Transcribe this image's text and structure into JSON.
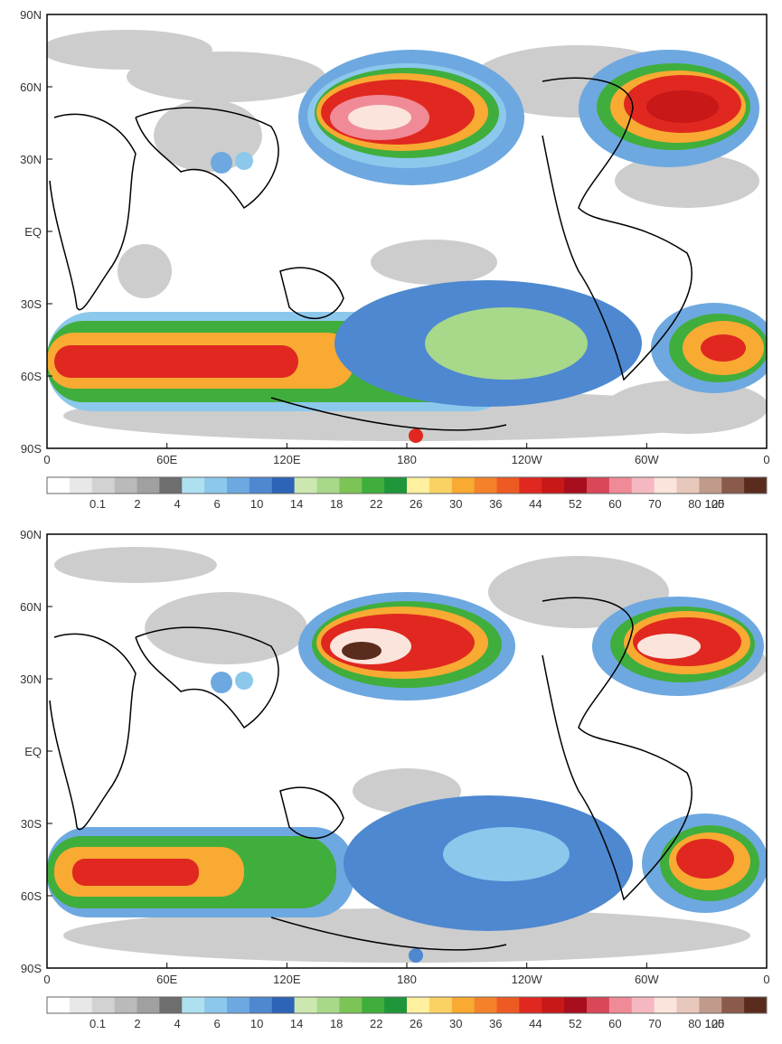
{
  "axes": {
    "lat_labels": [
      "90N",
      "60N",
      "30N",
      "EQ",
      "30S",
      "60S",
      "90S"
    ],
    "lon_labels": [
      "0",
      "60E",
      "120E",
      "180",
      "120W",
      "60W",
      "0"
    ]
  },
  "colorbar": {
    "labels": [
      "0.1",
      "2",
      "4",
      "6",
      "10",
      "14",
      "18",
      "22",
      "26",
      "30",
      "36",
      "44",
      "52",
      "60",
      "70",
      "80",
      "100",
      "125"
    ],
    "colors": [
      "#ffffff",
      "#e8e8e8",
      "#d2d2d2",
      "#bababa",
      "#a0a0a0",
      "#6e6e6e",
      "#aee0f0",
      "#8cc8ec",
      "#6ea8e0",
      "#4e88d0",
      "#2e64b8",
      "#cce8b0",
      "#a8d88a",
      "#7cc456",
      "#40ae3c",
      "#20963a",
      "#fff0a0",
      "#fad264",
      "#f8aa32",
      "#f4822a",
      "#ee5a24",
      "#e02820",
      "#c81818",
      "#a80e1e",
      "#d84858",
      "#f08a96",
      "#f6b8c0",
      "#fae4dc",
      "#e8c8bc",
      "#c09a8a",
      "#8a5a4a",
      "#5a2c1e"
    ]
  },
  "panels": [
    {
      "id": "top"
    },
    {
      "id": "bottom"
    }
  ]
}
